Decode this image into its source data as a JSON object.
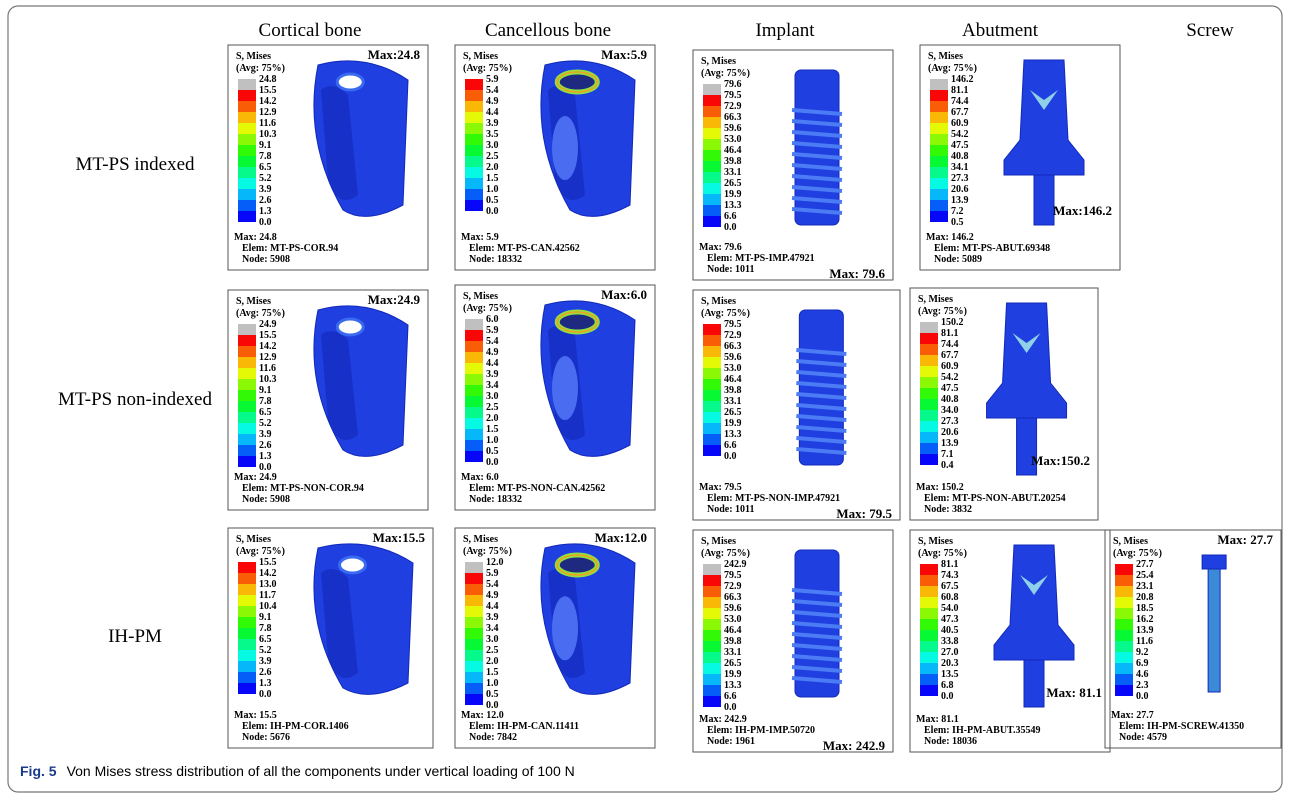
{
  "columns": [
    "Cortical bone",
    "Cancellous bone",
    "Implant",
    "Abutment",
    "Screw"
  ],
  "rows": [
    "MT-PS indexed",
    "MT-PS non-indexed",
    "IH-PM"
  ],
  "legend_title": "S, Mises",
  "legend_subtitle": "(Avg: 75%)",
  "panels": [
    {
      "legend": [
        "24.8",
        "15.5",
        "14.2",
        "12.9",
        "11.6",
        "10.3",
        "9.1",
        "7.8",
        "6.5",
        "5.2",
        "3.9",
        "2.6",
        "1.3",
        "0.0"
      ],
      "max": "Max: 24.8",
      "elem": "Elem: MT-PS-COR.94",
      "node": "Node: 5908",
      "callout": "Max:24.8"
    },
    {
      "legend": [
        "5.9",
        "5.4",
        "4.9",
        "4.4",
        "3.9",
        "3.5",
        "3.0",
        "2.5",
        "2.0",
        "1.5",
        "1.0",
        "0.5",
        "0.0"
      ],
      "max": "Max: 5.9",
      "elem": "Elem: MT-PS-CAN.42562",
      "node": "Node: 18332",
      "callout": "Max:5.9"
    },
    {
      "legend": [
        "79.6",
        "79.5",
        "72.9",
        "66.3",
        "59.6",
        "53.0",
        "46.4",
        "39.8",
        "33.1",
        "26.5",
        "19.9",
        "13.3",
        "6.6",
        "0.0"
      ],
      "max": "Max: 79.6",
      "elem": "Elem: MT-PS-IMP.47921",
      "node": "Node: 1011",
      "callout": "Max: 79.6"
    },
    {
      "legend": [
        "146.2",
        "81.1",
        "74.4",
        "67.7",
        "60.9",
        "54.2",
        "47.5",
        "40.8",
        "34.1",
        "27.3",
        "20.6",
        "13.9",
        "7.2",
        "0.5"
      ],
      "max": "Max: 146.2",
      "elem": "Elem: MT-PS-ABUT.69348",
      "node": "Node: 5089",
      "callout": "Max:146.2"
    },
    {
      "legend": [
        "24.9",
        "15.5",
        "14.2",
        "12.9",
        "11.6",
        "10.3",
        "9.1",
        "7.8",
        "6.5",
        "5.2",
        "3.9",
        "2.6",
        "1.3",
        "0.0"
      ],
      "max": "Max: 24.9",
      "elem": "Elem: MT-PS-NON-COR.94",
      "node": "Node: 5908",
      "callout": "Max:24.9"
    },
    {
      "legend": [
        "6.0",
        "5.9",
        "5.4",
        "4.9",
        "4.4",
        "3.9",
        "3.4",
        "3.0",
        "2.5",
        "2.0",
        "1.5",
        "1.0",
        "0.5",
        "0.0"
      ],
      "max": "Max: 6.0",
      "elem": "Elem: MT-PS-NON-CAN.42562",
      "node": "Node: 18332",
      "callout": "Max:6.0"
    },
    {
      "legend": [
        "79.5",
        "72.9",
        "66.3",
        "59.6",
        "53.0",
        "46.4",
        "39.8",
        "33.1",
        "26.5",
        "19.9",
        "13.3",
        "6.6",
        "0.0"
      ],
      "max": "Max: 79.5",
      "elem": "Elem: MT-PS-NON-IMP.47921",
      "node": "Node: 1011",
      "callout": "Max: 79.5"
    },
    {
      "legend": [
        "150.2",
        "81.1",
        "74.4",
        "67.7",
        "60.9",
        "54.2",
        "47.5",
        "40.8",
        "34.0",
        "27.3",
        "20.6",
        "13.9",
        "7.1",
        "0.4"
      ],
      "max": "Max: 150.2",
      "elem": "Elem: MT-PS-NON-ABUT.20254",
      "node": "Node: 3832",
      "callout": "Max:150.2"
    },
    {
      "legend": [
        "15.5",
        "14.2",
        "13.0",
        "11.7",
        "10.4",
        "9.1",
        "7.8",
        "6.5",
        "5.2",
        "3.9",
        "2.6",
        "1.3",
        "0.0"
      ],
      "max": "Max: 15.5",
      "elem": "Elem: IH-PM-COR.1406",
      "node": "Node: 5676",
      "callout": "Max:15.5"
    },
    {
      "legend": [
        "12.0",
        "5.9",
        "5.4",
        "4.9",
        "4.4",
        "3.9",
        "3.4",
        "3.0",
        "2.5",
        "2.0",
        "1.5",
        "1.0",
        "0.5",
        "0.0"
      ],
      "max": "Max: 12.0",
      "elem": "Elem: IH-PM-CAN.11411",
      "node": "Node: 7842",
      "callout": "Max:12.0"
    },
    {
      "legend": [
        "242.9",
        "79.5",
        "72.9",
        "66.3",
        "59.6",
        "53.0",
        "46.4",
        "39.8",
        "33.1",
        "26.5",
        "19.9",
        "13.3",
        "6.6",
        "0.0"
      ],
      "max": "Max: 242.9",
      "elem": "Elem: IH-PM-IMP.50720",
      "node": "Node: 1961",
      "callout": "Max: 242.9"
    },
    {
      "legend": [
        "81.1",
        "74.3",
        "67.5",
        "60.8",
        "54.0",
        "47.3",
        "40.5",
        "33.8",
        "27.0",
        "20.3",
        "13.5",
        "6.8",
        "0.0"
      ],
      "max": "Max: 81.1",
      "elem": "Elem: IH-PM-ABUT.35549",
      "node": "Node: 18036",
      "callout": "Max: 81.1"
    },
    {
      "legend": [
        "27.7",
        "25.4",
        "23.1",
        "20.8",
        "18.5",
        "16.2",
        "13.9",
        "11.6",
        "9.2",
        "6.9",
        "4.6",
        "2.3",
        "0.0"
      ],
      "max": "Max: 27.7",
      "elem": "Elem: IH-PM-SCREW.41350",
      "node": "Node: 4579",
      "callout": "Max: 27.7"
    }
  ],
  "caption": {
    "label": "Fig. 5",
    "text": "Von Mises stress distribution of all the components under vertical loading of 100 N"
  }
}
